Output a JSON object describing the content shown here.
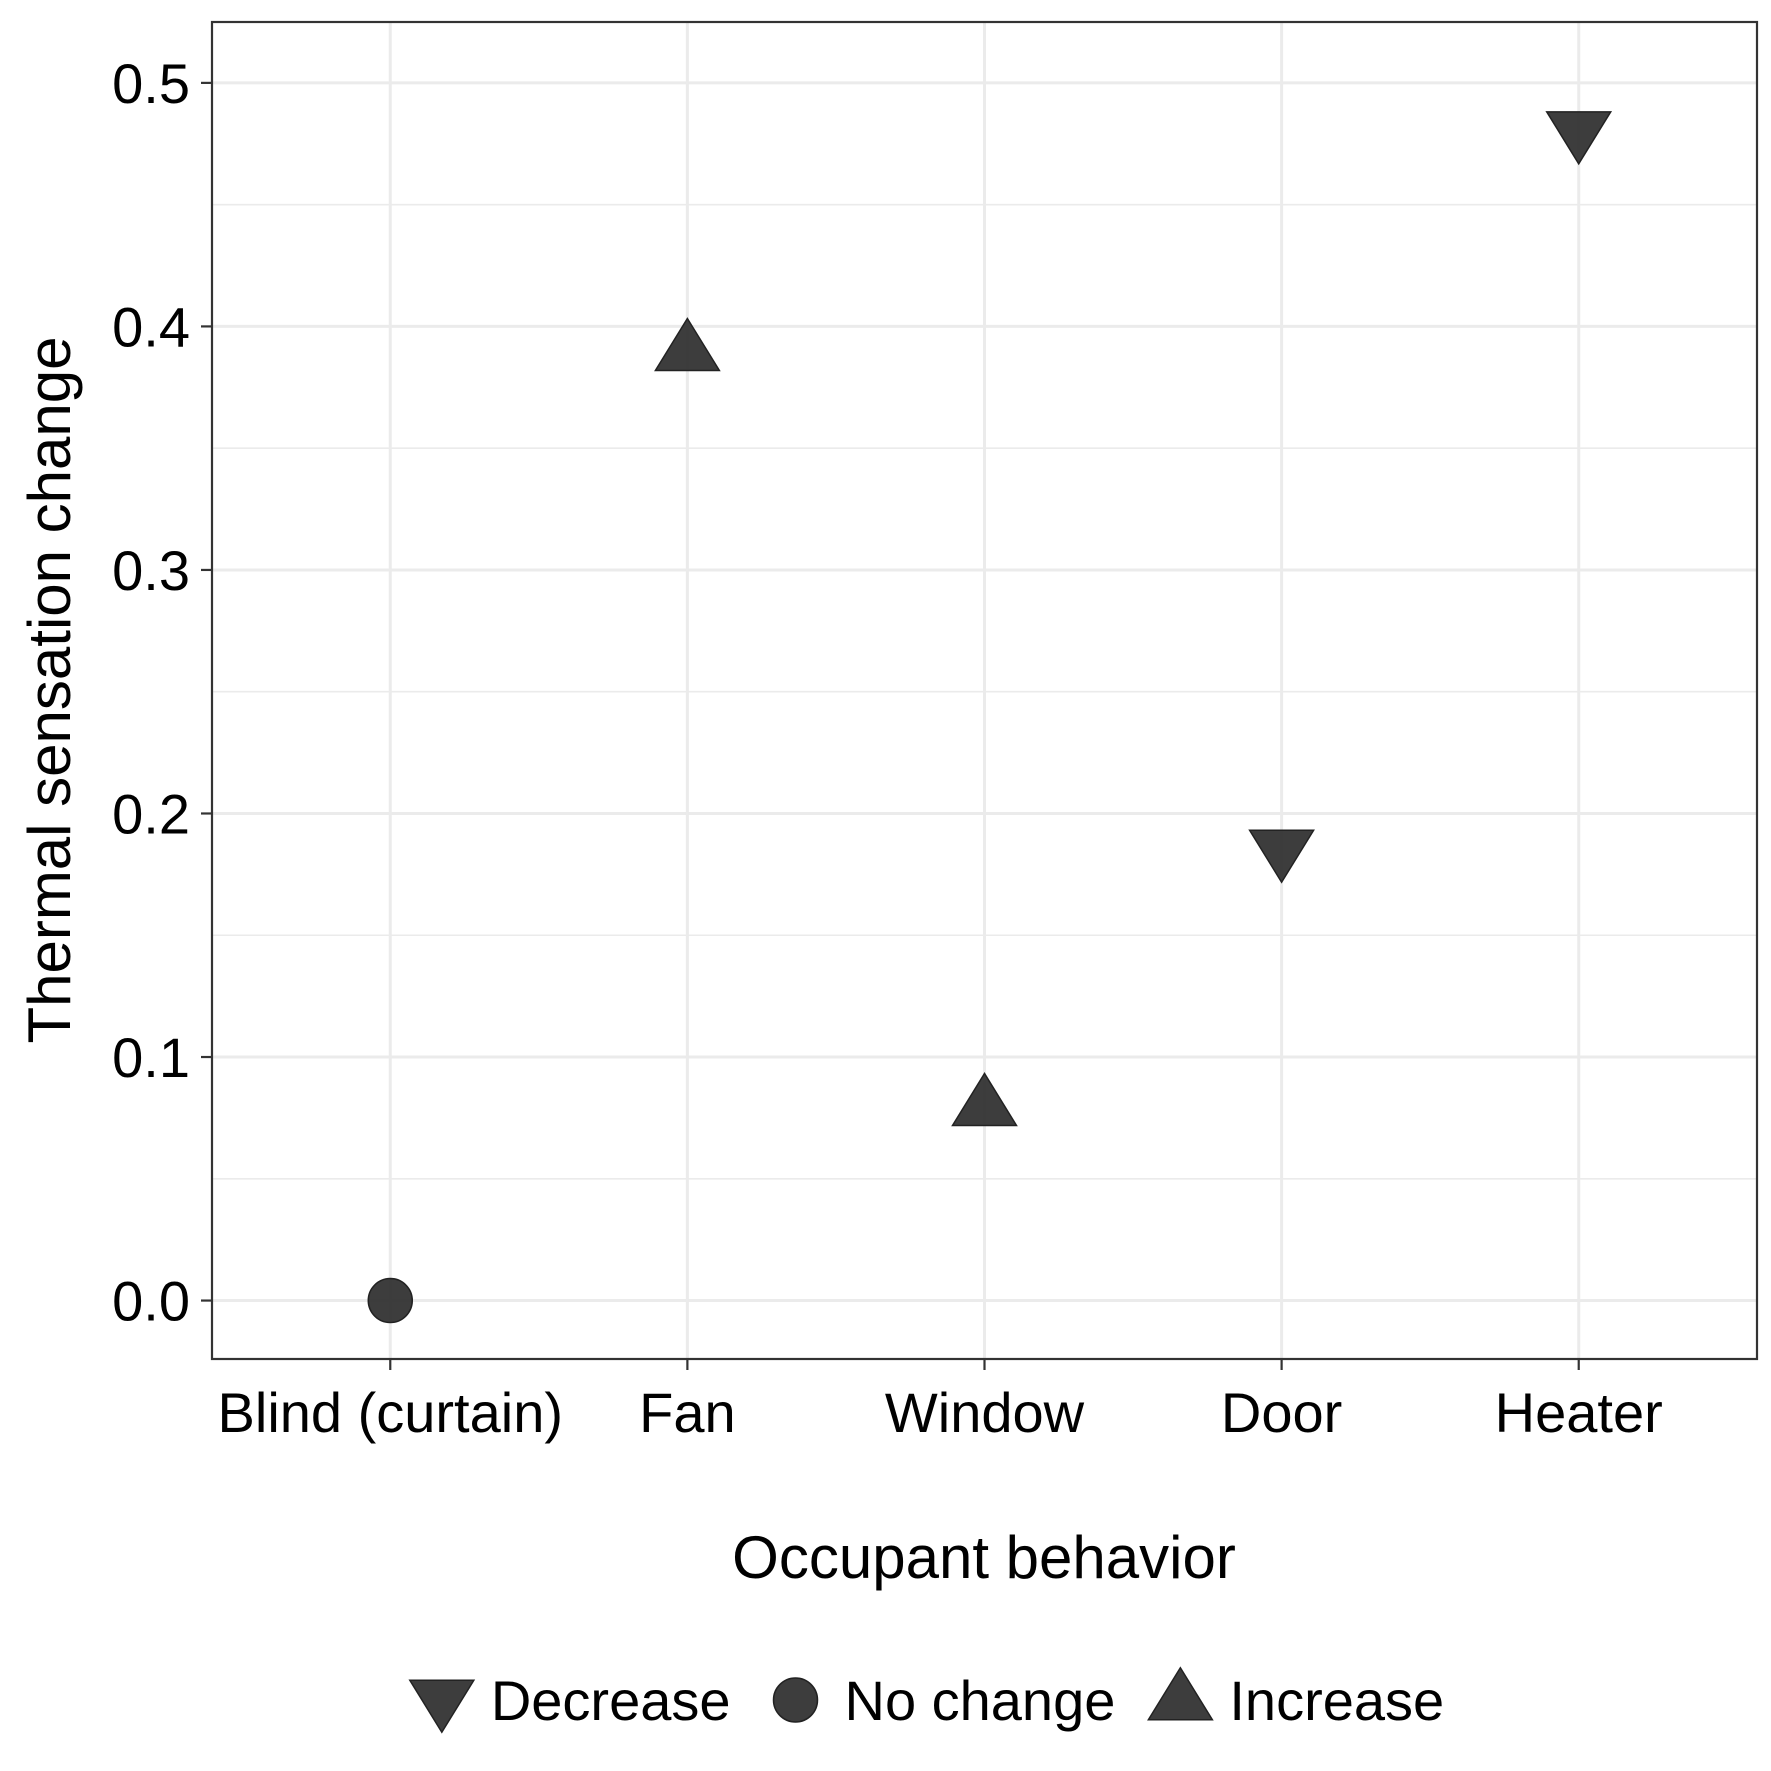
{
  "chart_data": {
    "type": "scatter",
    "title": "",
    "xlabel": "Occupant behavior",
    "ylabel": "Thermal sensation change",
    "categories": [
      "Blind (curtain)",
      "Fan",
      "Window",
      "Door",
      "Heater"
    ],
    "ylim": [
      -0.024,
      0.525
    ],
    "yticks": [
      "0.0",
      "0.1",
      "0.2",
      "0.3",
      "0.4",
      "0.5"
    ],
    "grid": true,
    "legend_position": "bottom",
    "marker_color": "#333333",
    "points": [
      {
        "x": "Blind (curtain)",
        "y": 0.0,
        "group": "No change"
      },
      {
        "x": "Fan",
        "y": 0.39,
        "group": "Increase"
      },
      {
        "x": "Window",
        "y": 0.08,
        "group": "Increase"
      },
      {
        "x": "Door",
        "y": 0.185,
        "group": "Decrease"
      },
      {
        "x": "Heater",
        "y": 0.48,
        "group": "Decrease"
      }
    ],
    "legend": [
      {
        "label": "Decrease",
        "shape": "triangle-down-icon"
      },
      {
        "label": "No change",
        "shape": "circle-icon"
      },
      {
        "label": "Increase",
        "shape": "triangle-up-icon"
      }
    ]
  }
}
